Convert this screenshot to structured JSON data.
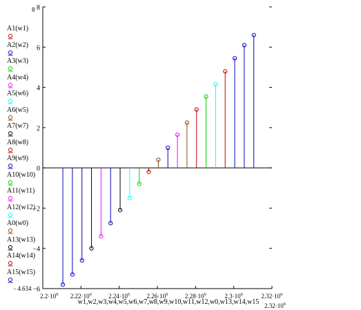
{
  "chart_data": {
    "type": "stem",
    "x": [
      2210500.0,
      2215500.0,
      2220500.0,
      2225500.0,
      2230500.0,
      2235500.0,
      2240500.0,
      2245500.0,
      2250500.0,
      2255500.0,
      2260500.0,
      2265500.0,
      2270500.0,
      2275500.0,
      2280500.0,
      2285500.0,
      2290500.0,
      2295500.0,
      2300500.0,
      2305500.0,
      2310500.0
    ],
    "xlabel": "w1,w2,w3,w4,w5,w6,w7,w8,w9,w10,w11,w12,w0,w13,w14,w15",
    "xlim": [
      2200000.0,
      2320000.0
    ],
    "xlim_labels": {
      "min": "2.2·10",
      "max": "2.32·10",
      "exp": "6"
    },
    "ylim": [
      -6,
      8
    ],
    "ylim_labels": {
      "max": "8",
      "min": "- 4.634"
    },
    "xticks": [
      {
        "base": "2.22·10",
        "exp": "6",
        "value": 2220000.0
      },
      {
        "base": "2.24·10",
        "exp": "6",
        "value": 2240000.0
      },
      {
        "base": "2.26·10",
        "exp": "6",
        "value": 2260000.0
      },
      {
        "base": "2.28·10",
        "exp": "6",
        "value": 2280000.0
      },
      {
        "base": "2.3·10",
        "exp": "6",
        "value": 2300000.0
      },
      {
        "base": "2.32·10",
        "exp": "6",
        "value": 2320000.0
      }
    ],
    "yticks": [
      {
        "label": "8",
        "value": 8
      },
      {
        "label": "6",
        "value": 6
      },
      {
        "label": "4",
        "value": 4
      },
      {
        "label": "2",
        "value": 2
      },
      {
        "label": "0",
        "value": 0
      },
      {
        "label": "−2",
        "value": -2
      },
      {
        "label": "−4",
        "value": -4
      },
      {
        "label": "−6",
        "value": -6
      }
    ],
    "stems": [
      {
        "value": -5.8,
        "color": "#0000c0"
      },
      {
        "value": -5.3,
        "color": "#0000c0"
      },
      {
        "value": -4.6,
        "color": "#0000c0"
      },
      {
        "value": -4.0,
        "color": "#000000"
      },
      {
        "value": -3.4,
        "color": "#ff00ff"
      },
      {
        "value": -2.75,
        "color": "#0000c0"
      },
      {
        "value": -2.1,
        "color": "#000000"
      },
      {
        "value": -1.5,
        "color": "#00ffff"
      },
      {
        "value": -0.8,
        "color": "#00d000"
      },
      {
        "value": -0.2,
        "color": "#c00000"
      },
      {
        "value": 0.4,
        "color": "#8b4513"
      },
      {
        "value": 1.0,
        "color": "#0000c0"
      },
      {
        "value": 1.65,
        "color": "#ff00ff"
      },
      {
        "value": 2.25,
        "color": "#8b4513"
      },
      {
        "value": 2.9,
        "color": "#c00000"
      },
      {
        "value": 3.55,
        "color": "#00d000"
      },
      {
        "value": 4.15,
        "color": "#00ffff"
      },
      {
        "value": 4.8,
        "color": "#c00000"
      },
      {
        "value": 5.45,
        "color": "#0000c0"
      },
      {
        "value": 6.1,
        "color": "#0000c0"
      },
      {
        "value": 6.6,
        "color": "#0000c0"
      }
    ],
    "legend": [
      {
        "label": "A1(w1)",
        "color": "#c00000"
      },
      {
        "label": "A2(w2)",
        "color": "#0000c0"
      },
      {
        "label": "A3(w3)",
        "color": "#00d000"
      },
      {
        "label": "A4(w4)",
        "color": "#ff00ff"
      },
      {
        "label": "A5(w6)",
        "color": "#00ffff"
      },
      {
        "label": "A6(w5)",
        "color": "#8b4513"
      },
      {
        "label": "A7(w7)",
        "color": "#000000"
      },
      {
        "label": "A8(w8)",
        "color": "#c00000"
      },
      {
        "label": "A9(w9)",
        "color": "#0000c0"
      },
      {
        "label": "A10(w10)",
        "color": "#00d000"
      },
      {
        "label": "A11(w11)",
        "color": "#ff00ff"
      },
      {
        "label": "A12(w12)",
        "color": "#00ffff"
      },
      {
        "label": "A0(w0)",
        "color": "#8b4513"
      },
      {
        "label": "A13(w13)",
        "color": "#000000"
      },
      {
        "label": "A14(w14)",
        "color": "#c00000"
      },
      {
        "label": "A15(w15)",
        "color": "#0000c0"
      }
    ],
    "legend_placement": "left",
    "grid": false
  }
}
